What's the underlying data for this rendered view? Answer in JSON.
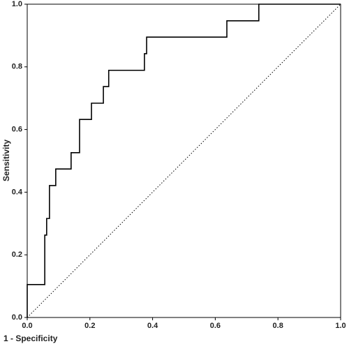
{
  "chart_data": {
    "type": "line",
    "xlabel": "1 - Specificity",
    "ylabel": "Sensitivity",
    "x": [
      0,
      0,
      0.056,
      0.056,
      0.062,
      0.062,
      0.071,
      0.071,
      0.091,
      0.091,
      0.14,
      0.14,
      0.167,
      0.167,
      0.205,
      0.205,
      0.243,
      0.243,
      0.26,
      0.26,
      0.374,
      0.374,
      0.381,
      0.381,
      0.637,
      0.637,
      0.739,
      0.739,
      1.0
    ],
    "series": [
      {
        "color": "#000000",
        "values": [
          0,
          0.105,
          0.105,
          0.263,
          0.263,
          0.316,
          0.316,
          0.421,
          0.421,
          0.474,
          0.474,
          0.526,
          0.526,
          0.632,
          0.632,
          0.684,
          0.684,
          0.737,
          0.737,
          0.789,
          0.789,
          0.842,
          0.842,
          0.895,
          0.895,
          0.947,
          0.947,
          1.0,
          1.0
        ]
      }
    ],
    "xlim": [
      0,
      1
    ],
    "ylim": [
      0,
      1
    ],
    "xticks": [
      {
        "value": 0,
        "label": "0.0"
      },
      {
        "value": 0.2,
        "label": "0.2"
      },
      {
        "value": 0.4,
        "label": "0.4"
      },
      {
        "value": 0.6,
        "label": "0.6"
      },
      {
        "value": 0.8,
        "label": "0.8"
      },
      {
        "value": 1,
        "label": "1.0"
      }
    ],
    "yticks": [
      {
        "value": 0,
        "label": "0.0"
      },
      {
        "value": 0.2,
        "label": "0.2"
      },
      {
        "value": 0.4,
        "label": "0.4"
      },
      {
        "value": 0.6,
        "label": "0.6"
      },
      {
        "value": 0.8,
        "label": "0.8"
      },
      {
        "value": 1,
        "label": "1.0"
      }
    ],
    "reference_diagonal": true
  }
}
